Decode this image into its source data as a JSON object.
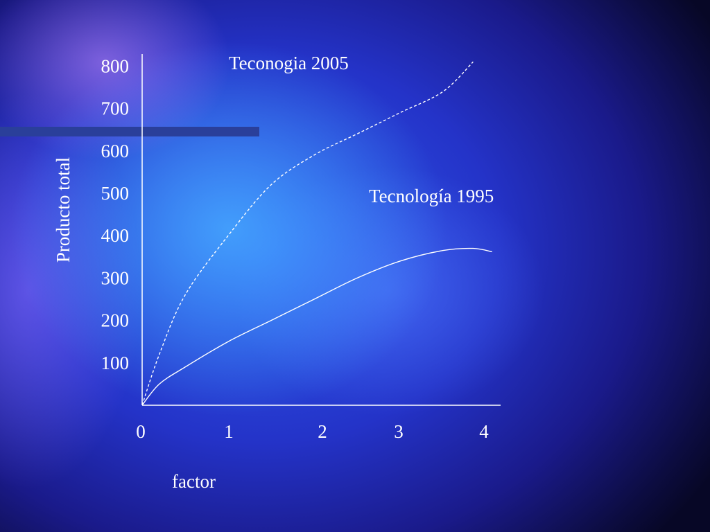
{
  "chart_data": {
    "type": "line",
    "xlabel": "factor",
    "ylabel": "Producto total",
    "x_ticks": [
      0,
      1,
      2,
      3,
      4
    ],
    "y_ticks": [
      100,
      200,
      300,
      400,
      500,
      600,
      700,
      800
    ],
    "xlim": [
      0,
      4.2
    ],
    "ylim": [
      0,
      820
    ],
    "grid": false,
    "series": [
      {
        "name": "Teconogia 2005",
        "style": "dashed",
        "color": "#ffffff",
        "points": [
          [
            0,
            0
          ],
          [
            0.2,
            120
          ],
          [
            0.5,
            260
          ],
          [
            1,
            400
          ],
          [
            1.5,
            520
          ],
          [
            2,
            590
          ],
          [
            2.5,
            640
          ],
          [
            3,
            690
          ],
          [
            3.5,
            740
          ],
          [
            3.85,
            810
          ]
        ]
      },
      {
        "name": "Tecnología 1995",
        "style": "solid",
        "color": "#ffffff",
        "points": [
          [
            0,
            0
          ],
          [
            0.2,
            50
          ],
          [
            0.5,
            90
          ],
          [
            1,
            150
          ],
          [
            1.5,
            200
          ],
          [
            2,
            250
          ],
          [
            2.5,
            300
          ],
          [
            3,
            340
          ],
          [
            3.5,
            365
          ],
          [
            3.85,
            370
          ],
          [
            4.07,
            362
          ]
        ]
      }
    ]
  }
}
